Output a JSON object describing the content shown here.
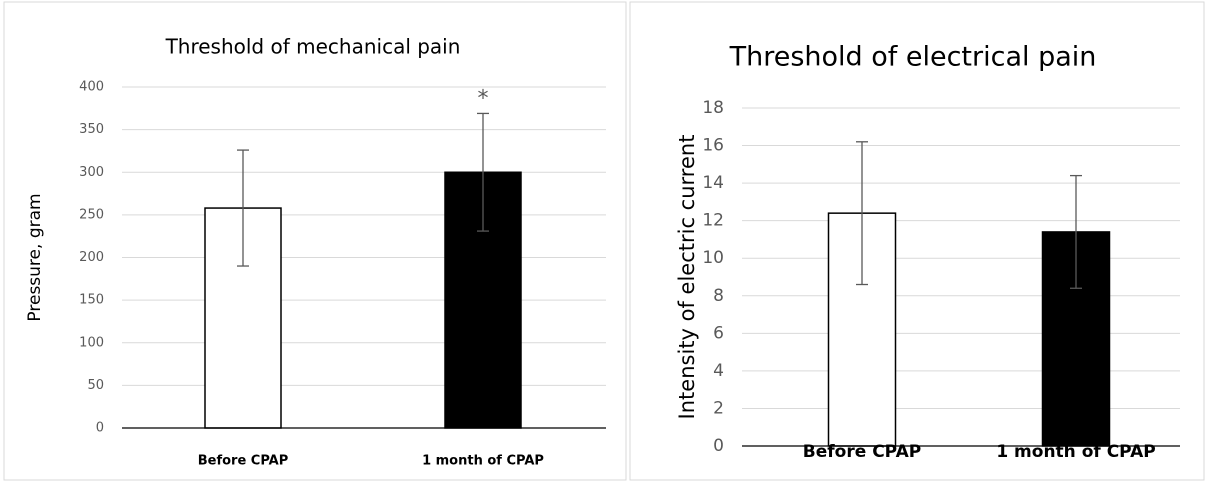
{
  "chart_data": [
    {
      "type": "bar",
      "title": "Threshold of mechanical pain",
      "y_label": "Pressure, gram",
      "categories": [
        "Before CPAP",
        "1 month of CPAP"
      ],
      "values": [
        258,
        300
      ],
      "errors": [
        68,
        69
      ],
      "colors": [
        "#ffffff",
        "#000000"
      ],
      "ylim": [
        0,
        400
      ],
      "yticks": [
        0,
        50,
        100,
        150,
        200,
        250,
        300,
        350,
        400
      ],
      "grid": true,
      "annotations": [
        "*"
      ]
    },
    {
      "type": "bar",
      "title": "Threshold of electrical pain",
      "y_label": "Intensity of electric current",
      "categories": [
        "Before CPAP",
        "1 month of CPAP"
      ],
      "values": [
        12.4,
        11.4
      ],
      "errors": [
        3.8,
        3.0
      ],
      "colors": [
        "#ffffff",
        "#000000"
      ],
      "ylim": [
        0,
        18
      ],
      "yticks": [
        0,
        2,
        4,
        6,
        8,
        10,
        12,
        14,
        16,
        18
      ],
      "grid": true
    }
  ]
}
